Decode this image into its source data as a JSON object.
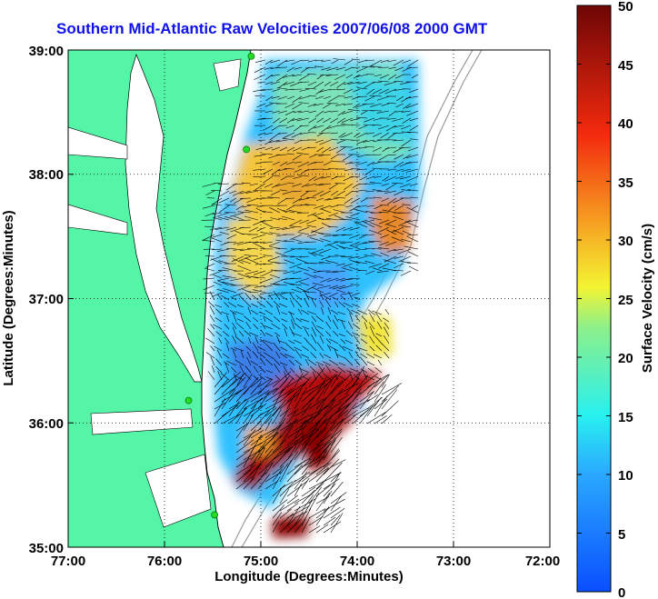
{
  "title": "Southern Mid-Atlantic Raw Velocities 2007/06/08 2000 GMT",
  "xaxis": {
    "label": "Longitude (Degrees:Minutes)",
    "ticks": [
      "77:00",
      "76:00",
      "75:00",
      "74:00",
      "73:00",
      "72:00"
    ]
  },
  "yaxis": {
    "label": "Latitude (Degrees:Minutes)",
    "ticks": [
      "39:00",
      "38:00",
      "37:00",
      "36:00",
      "35:00"
    ]
  },
  "colorbar": {
    "label": "Surface Velocity (cm/s)",
    "ticks": [
      "50",
      "45",
      "40",
      "35",
      "30",
      "25",
      "20",
      "15",
      "10",
      "5",
      "0"
    ],
    "range": [
      0,
      50
    ]
  },
  "colors": {
    "land": "#55f5a8",
    "title": "#1010e8",
    "vector": "#000000",
    "station": "#22dd22"
  },
  "map": {
    "lon_range": [
      -77,
      -72
    ],
    "lat_range": [
      35,
      39
    ],
    "grid": true,
    "stations": [
      {
        "lon": -75.1,
        "lat": 38.95
      },
      {
        "lon": -75.15,
        "lat": 38.2
      },
      {
        "lon": -75.75,
        "lat": 36.18
      },
      {
        "lon": -75.48,
        "lat": 35.26
      }
    ]
  }
}
